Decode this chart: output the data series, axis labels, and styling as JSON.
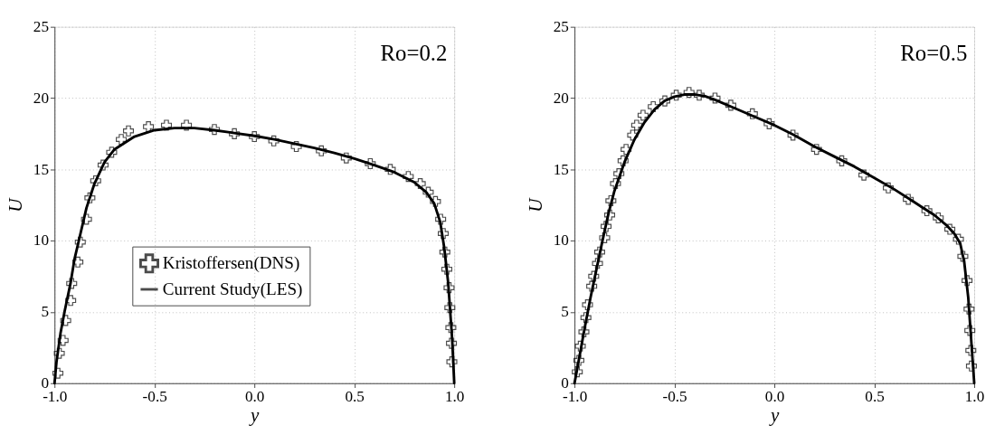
{
  "chart_data": [
    {
      "type": "line",
      "xlabel": "y",
      "ylabel": "U",
      "annotations": [
        "Ro=0.2"
      ],
      "xlim": [
        -1.0,
        1.0
      ],
      "xticks": [
        {
          "value": -1.0,
          "label": "-1.0"
        },
        {
          "value": -0.5,
          "label": "-0.5"
        },
        {
          "value": 0,
          "label": "0.0"
        },
        {
          "value": 0.5,
          "label": "0.5"
        },
        {
          "value": 1.0,
          "label": "1.0"
        }
      ],
      "ylim": [
        0,
        25
      ],
      "yticks": [
        0,
        5,
        10,
        15,
        20,
        25
      ],
      "grid": true,
      "legend": "bottom left",
      "series": [
        {
          "name": "Kristoffersen(DNS)",
          "type": "scatter",
          "marker": "cross",
          "color": "#000000",
          "x": [
            -0.983,
            -0.976,
            -0.957,
            -0.944,
            -0.919,
            -0.914,
            -0.883,
            -0.871,
            -0.84,
            -0.823,
            -0.794,
            -0.757,
            -0.714,
            -0.666,
            -0.63,
            -0.53,
            -0.44,
            -0.34,
            -0.2,
            -0.1,
            0.0,
            0.097,
            0.21,
            0.335,
            0.46,
            0.58,
            0.68,
            0.77,
            0.83,
            0.87,
            0.906,
            0.932,
            0.945,
            0.953,
            0.963,
            0.974,
            0.978,
            0.983,
            0.986,
            0.988
          ],
          "values": [
            0.7,
            2.1,
            3.0,
            4.4,
            5.8,
            7.0,
            8.5,
            9.9,
            11.5,
            13.0,
            14.2,
            15.3,
            16.2,
            17.1,
            17.7,
            18.0,
            18.1,
            18.1,
            17.8,
            17.5,
            17.3,
            17.0,
            16.6,
            16.3,
            15.8,
            15.4,
            15.0,
            14.5,
            14.0,
            13.4,
            12.75,
            11.5,
            10.5,
            9.2,
            8.0,
            6.7,
            5.3,
            3.9,
            2.8,
            1.5
          ]
        },
        {
          "name": "Current Study(LES)",
          "type": "line",
          "marker": "none",
          "line_style": "solid",
          "color": "#000000",
          "x": [
            -1.0,
            -0.99,
            -0.97,
            -0.95,
            -0.92,
            -0.9,
            -0.87,
            -0.84,
            -0.8,
            -0.75,
            -0.7,
            -0.6,
            -0.5,
            -0.4,
            -0.3,
            -0.2,
            -0.1,
            0.0,
            0.1,
            0.2,
            0.3,
            0.4,
            0.5,
            0.6,
            0.7,
            0.8,
            0.86,
            0.9,
            0.93,
            0.95,
            0.97,
            0.98,
            0.99,
            0.995,
            1.0
          ],
          "values": [
            0,
            1.5,
            3.5,
            5.0,
            7.0,
            8.7,
            10.5,
            12.3,
            14.0,
            15.5,
            16.4,
            17.3,
            17.75,
            17.9,
            17.9,
            17.75,
            17.55,
            17.35,
            17.1,
            16.8,
            16.5,
            16.15,
            15.75,
            15.3,
            14.8,
            14.1,
            13.4,
            12.6,
            11.3,
            9.5,
            7.0,
            5.0,
            3.0,
            1.5,
            0
          ]
        }
      ]
    },
    {
      "type": "line",
      "xlabel": "y",
      "ylabel": "U",
      "annotations": [
        "Ro=0.5"
      ],
      "xlim": [
        -1.0,
        1.0
      ],
      "xticks": [
        {
          "value": -1.0,
          "label": "-1.0"
        },
        {
          "value": -0.5,
          "label": "-0.5"
        },
        {
          "value": 0,
          "label": "0.0"
        },
        {
          "value": 0.5,
          "label": "0.5"
        },
        {
          "value": 1.0,
          "label": "1.0"
        }
      ],
      "ylim": [
        0,
        25
      ],
      "yticks": [
        0,
        5,
        10,
        15,
        20,
        25
      ],
      "grid": true,
      "series": [
        {
          "type": "scatter",
          "marker": "cross",
          "color": "#000000",
          "x": [
            -0.986,
            -0.978,
            -0.971,
            -0.953,
            -0.943,
            -0.935,
            -0.914,
            -0.904,
            -0.885,
            -0.874,
            -0.849,
            -0.842,
            -0.824,
            -0.818,
            -0.795,
            -0.778,
            -0.757,
            -0.742,
            -0.709,
            -0.689,
            -0.657,
            -0.606,
            -0.548,
            -0.491,
            -0.427,
            -0.376,
            -0.297,
            -0.218,
            -0.11,
            -0.026,
            0.093,
            0.211,
            0.337,
            0.448,
            0.57,
            0.67,
            0.763,
            0.82,
            0.878,
            0.921,
            0.943,
            0.964,
            0.974,
            0.978,
            0.983,
            0.986
          ],
          "values": [
            0.8,
            1.6,
            2.6,
            3.6,
            4.6,
            5.5,
            6.8,
            7.5,
            8.4,
            9.2,
            10.2,
            11.0,
            11.8,
            12.8,
            14.0,
            14.7,
            15.6,
            16.4,
            17.4,
            18.1,
            18.8,
            19.4,
            19.8,
            20.2,
            20.4,
            20.2,
            20.0,
            19.5,
            18.9,
            18.2,
            17.4,
            16.4,
            15.6,
            14.6,
            13.7,
            12.9,
            12.1,
            11.6,
            10.8,
            10.1,
            8.9,
            7.2,
            5.2,
            3.7,
            2.3,
            1.2
          ]
        },
        {
          "type": "line",
          "marker": "none",
          "line_style": "solid",
          "color": "#000000",
          "x": [
            -1.0,
            -0.98,
            -0.95,
            -0.92,
            -0.89,
            -0.86,
            -0.83,
            -0.8,
            -0.75,
            -0.7,
            -0.65,
            -0.6,
            -0.55,
            -0.5,
            -0.45,
            -0.4,
            -0.35,
            -0.3,
            -0.2,
            -0.1,
            0.0,
            0.1,
            0.2,
            0.3,
            0.4,
            0.5,
            0.6,
            0.7,
            0.8,
            0.86,
            0.9,
            0.93,
            0.95,
            0.97,
            0.98,
            0.99,
            1.0
          ],
          "values": [
            0,
            1.5,
            3.8,
            6.0,
            8.0,
            10.0,
            11.9,
            13.5,
            15.5,
            17.1,
            18.3,
            19.2,
            19.8,
            20.1,
            20.25,
            20.25,
            20.15,
            19.9,
            19.3,
            18.7,
            18.1,
            17.4,
            16.6,
            15.9,
            15.2,
            14.4,
            13.6,
            12.7,
            11.8,
            11.1,
            10.5,
            9.8,
            8.5,
            6.0,
            4.0,
            2.0,
            0
          ]
        }
      ]
    }
  ]
}
